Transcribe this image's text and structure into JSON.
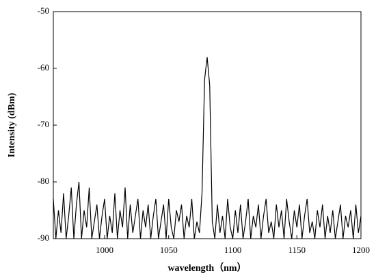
{
  "chart_data": {
    "type": "line",
    "x_label": "wavelength（nm）",
    "y_label": "Intensity (dBm)",
    "xlim": [
      960,
      1200
    ],
    "xticks": [
      1000,
      1050,
      1100,
      1150,
      1200
    ],
    "ylim": [
      -90,
      -50
    ],
    "yticks": [
      -90,
      -80,
      -70,
      -60,
      -50
    ],
    "color": "#000000",
    "x": [
      960,
      962,
      964,
      966,
      968,
      970,
      972,
      974,
      976,
      978,
      980,
      982,
      984,
      986,
      988,
      990,
      992,
      994,
      996,
      998,
      1000,
      1002,
      1004,
      1006,
      1008,
      1010,
      1012,
      1014,
      1016,
      1018,
      1020,
      1022,
      1024,
      1026,
      1028,
      1030,
      1032,
      1034,
      1036,
      1038,
      1040,
      1042,
      1044,
      1046,
      1048,
      1050,
      1052,
      1054,
      1056,
      1058,
      1060,
      1062,
      1064,
      1066,
      1068,
      1070,
      1072,
      1074,
      1076,
      1078,
      1080,
      1082,
      1084,
      1086,
      1088,
      1090,
      1092,
      1094,
      1096,
      1098,
      1100,
      1102,
      1104,
      1106,
      1108,
      1110,
      1112,
      1114,
      1116,
      1118,
      1120,
      1122,
      1124,
      1126,
      1128,
      1130,
      1132,
      1134,
      1136,
      1138,
      1140,
      1142,
      1144,
      1146,
      1148,
      1150,
      1152,
      1154,
      1156,
      1158,
      1160,
      1162,
      1164,
      1166,
      1168,
      1170,
      1172,
      1174,
      1176,
      1178,
      1180,
      1182,
      1184,
      1186,
      1188,
      1190,
      1192,
      1194,
      1196,
      1198,
      1200
    ],
    "values": [
      -83,
      -90,
      -85,
      -89,
      -82,
      -90,
      -86,
      -81,
      -90,
      -84,
      -80,
      -90,
      -85,
      -88,
      -81,
      -90,
      -87,
      -84,
      -90,
      -86,
      -83,
      -90,
      -86,
      -89,
      -82,
      -90,
      -85,
      -88,
      -81,
      -90,
      -84,
      -89,
      -86,
      -83,
      -90,
      -85,
      -88,
      -84,
      -90,
      -86,
      -83,
      -90,
      -87,
      -84,
      -90,
      -83,
      -88,
      -90,
      -85,
      -87,
      -84,
      -90,
      -86,
      -88,
      -83,
      -90,
      -87,
      -89,
      -82,
      -62,
      -58,
      -63,
      -87,
      -90,
      -84,
      -89,
      -86,
      -90,
      -83,
      -88,
      -90,
      -85,
      -89,
      -84,
      -90,
      -87,
      -83,
      -90,
      -86,
      -88,
      -84,
      -90,
      -86,
      -83,
      -89,
      -87,
      -90,
      -84,
      -88,
      -85,
      -90,
      -83,
      -87,
      -90,
      -85,
      -88,
      -84,
      -90,
      -86,
      -83,
      -89,
      -87,
      -90,
      -85,
      -88,
      -84,
      -90,
      -86,
      -89,
      -85,
      -90,
      -87,
      -84,
      -90,
      -86,
      -88,
      -85,
      -90,
      -84,
      -89,
      -86
    ]
  }
}
